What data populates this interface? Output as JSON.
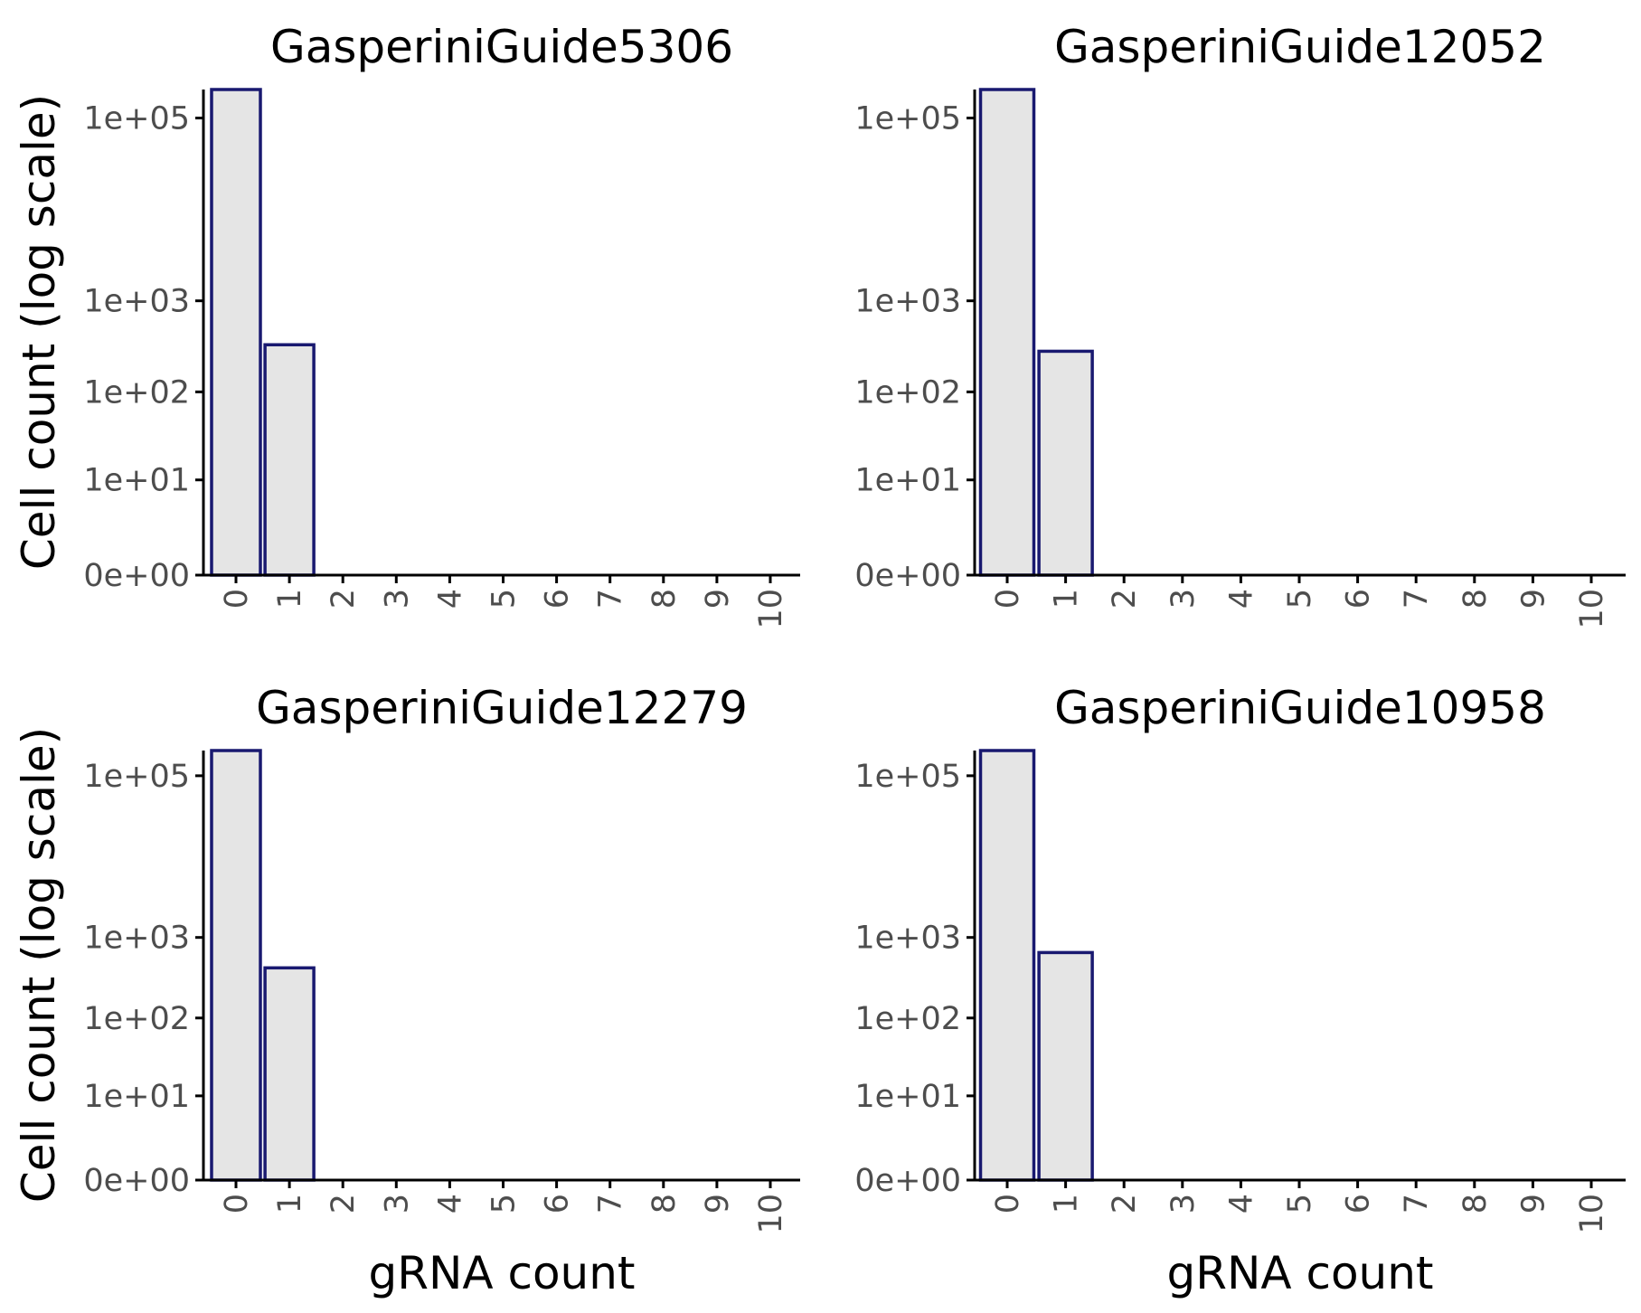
{
  "chart_data": [
    {
      "type": "bar",
      "title": "GasperiniGuide5306",
      "xlabel": "",
      "ylabel": "Cell count (log scale)",
      "yscale": "log1p",
      "categories": [
        "0",
        "1",
        "2",
        "3",
        "4",
        "5",
        "6",
        "7",
        "8",
        "9",
        "10"
      ],
      "values": [
        205000,
        330,
        0,
        0,
        0,
        0,
        0,
        0,
        0,
        0,
        0
      ],
      "yticks": [
        0,
        10,
        100,
        1000,
        100000
      ],
      "ytick_labels": [
        "0e+00",
        "1e+01",
        "1e+02",
        "1e+03",
        "1e+05"
      ],
      "ylim": [
        0,
        205000
      ],
      "grid": false,
      "colors": {
        "fill": "#e5e5e5",
        "stroke": "#191970"
      }
    },
    {
      "type": "bar",
      "title": "GasperiniGuide12052",
      "xlabel": "",
      "ylabel": "",
      "yscale": "log1p",
      "categories": [
        "0",
        "1",
        "2",
        "3",
        "4",
        "5",
        "6",
        "7",
        "8",
        "9",
        "10"
      ],
      "values": [
        205000,
        280,
        0,
        0,
        0,
        0,
        0,
        0,
        0,
        0,
        0
      ],
      "yticks": [
        0,
        10,
        100,
        1000,
        100000
      ],
      "ytick_labels": [
        "0e+00",
        "1e+01",
        "1e+02",
        "1e+03",
        "1e+05"
      ],
      "ylim": [
        0,
        205000
      ],
      "grid": false,
      "colors": {
        "fill": "#e5e5e5",
        "stroke": "#191970"
      }
    },
    {
      "type": "bar",
      "title": "GasperiniGuide12279",
      "xlabel": "gRNA count",
      "ylabel": "Cell count (log scale)",
      "yscale": "log1p",
      "categories": [
        "0",
        "1",
        "2",
        "3",
        "4",
        "5",
        "6",
        "7",
        "8",
        "9",
        "10"
      ],
      "values": [
        205000,
        420,
        0,
        0,
        0,
        0,
        0,
        0,
        0,
        0,
        0
      ],
      "yticks": [
        0,
        10,
        100,
        1000,
        100000
      ],
      "ytick_labels": [
        "0e+00",
        "1e+01",
        "1e+02",
        "1e+03",
        "1e+05"
      ],
      "ylim": [
        0,
        205000
      ],
      "grid": false,
      "colors": {
        "fill": "#e5e5e5",
        "stroke": "#191970"
      }
    },
    {
      "type": "bar",
      "title": "GasperiniGuide10958",
      "xlabel": "gRNA count",
      "ylabel": "",
      "yscale": "log1p",
      "categories": [
        "0",
        "1",
        "2",
        "3",
        "4",
        "5",
        "6",
        "7",
        "8",
        "9",
        "10"
      ],
      "values": [
        205000,
        650,
        0,
        0,
        0,
        0,
        0,
        0,
        0,
        0,
        0
      ],
      "yticks": [
        0,
        10,
        100,
        1000,
        100000
      ],
      "ytick_labels": [
        "0e+00",
        "1e+01",
        "1e+02",
        "1e+03",
        "1e+05"
      ],
      "ylim": [
        0,
        205000
      ],
      "grid": false,
      "colors": {
        "fill": "#e5e5e5",
        "stroke": "#191970"
      }
    }
  ]
}
